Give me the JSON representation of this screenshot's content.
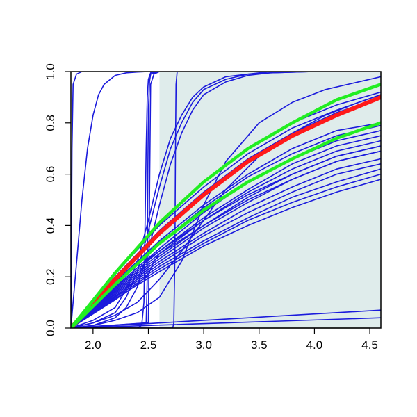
{
  "chart_data": {
    "type": "line",
    "title": "",
    "xlabel": "",
    "ylabel": "",
    "xlim": [
      1.8,
      4.6
    ],
    "ylim": [
      0.0,
      1.0
    ],
    "grid": false,
    "xticks": [
      2.0,
      2.5,
      3.0,
      3.5,
      4.0,
      4.5
    ],
    "xtick_labels": [
      "2.0",
      "2.5",
      "3.0",
      "3.5",
      "4.0",
      "4.5"
    ],
    "yticks": [
      0.0,
      0.2,
      0.4,
      0.6,
      0.8,
      1.0
    ],
    "ytick_labels": [
      "0.0",
      "0.2",
      "0.4",
      "0.6",
      "0.8",
      "1.0"
    ],
    "shaded_region": {
      "x": [
        2.6,
        4.6
      ],
      "color": "#dfeceb"
    },
    "colors": {
      "curves": "#1a1adc",
      "central": "#ff1a1a",
      "bounds": "#22ee22",
      "shade": "#dfeceb"
    },
    "series": [
      {
        "role": "curve",
        "x": [
          1.8,
          1.805,
          1.81,
          1.82,
          1.85,
          1.9,
          2.0,
          4.6
        ],
        "y": [
          0.0,
          0.3,
          0.7,
          0.95,
          0.99,
          1.0,
          1.0,
          1.0
        ]
      },
      {
        "role": "curve",
        "x": [
          1.8,
          1.83,
          1.86,
          1.9,
          1.95,
          2.0,
          2.05,
          2.1,
          2.2,
          2.3,
          2.4,
          2.5,
          2.6
        ],
        "y": [
          0.0,
          0.15,
          0.3,
          0.5,
          0.7,
          0.83,
          0.91,
          0.95,
          0.985,
          0.995,
          0.998,
          1.0,
          1.0
        ]
      },
      {
        "role": "curve",
        "x": [
          1.8,
          2.4,
          2.44,
          2.46,
          2.47,
          2.48,
          2.49,
          2.5,
          2.52,
          2.6
        ],
        "y": [
          0.0,
          0.0,
          0.01,
          0.1,
          0.4,
          0.7,
          0.9,
          0.97,
          0.995,
          1.0
        ]
      },
      {
        "role": "curve",
        "x": [
          1.8,
          2.48,
          2.49,
          2.495,
          2.5,
          2.51,
          2.52,
          2.6
        ],
        "y": [
          0.0,
          0.02,
          0.2,
          0.6,
          0.85,
          0.96,
          0.99,
          1.0
        ]
      },
      {
        "role": "curve",
        "x": [
          1.8,
          2.5,
          2.51,
          2.52,
          2.55,
          2.6
        ],
        "y": [
          0.0,
          0.02,
          0.5,
          0.95,
          0.99,
          1.0
        ]
      },
      {
        "role": "curve",
        "x": [
          1.8,
          2.72,
          2.73,
          2.74,
          2.745,
          2.75,
          2.76,
          4.6
        ],
        "y": [
          0.0,
          0.0,
          0.02,
          0.3,
          0.7,
          0.95,
          1.0,
          1.0
        ]
      },
      {
        "role": "curve",
        "x": [
          1.8,
          2.0,
          2.2,
          2.3,
          2.4,
          2.5,
          2.6,
          2.7,
          2.8,
          2.9,
          3.0,
          3.2,
          3.4,
          3.6,
          4.0,
          4.6
        ],
        "y": [
          0.0,
          0.02,
          0.06,
          0.12,
          0.22,
          0.38,
          0.55,
          0.7,
          0.8,
          0.88,
          0.93,
          0.97,
          0.99,
          0.995,
          1.0,
          1.0
        ]
      },
      {
        "role": "curve",
        "x": [
          1.8,
          2.0,
          2.2,
          2.3,
          2.4,
          2.5,
          2.6,
          2.7,
          2.8,
          2.9,
          3.0,
          3.2,
          3.4,
          3.6,
          4.0,
          4.6
        ],
        "y": [
          0.0,
          0.01,
          0.04,
          0.08,
          0.16,
          0.3,
          0.48,
          0.64,
          0.76,
          0.85,
          0.91,
          0.96,
          0.985,
          0.995,
          1.0,
          1.0
        ]
      },
      {
        "role": "curve",
        "x": [
          1.8,
          2.0,
          2.2,
          2.3,
          2.4,
          2.5,
          2.6,
          2.7,
          2.8,
          2.9,
          3.0,
          3.2,
          3.4,
          3.6,
          4.0,
          4.6
        ],
        "y": [
          0.0,
          0.03,
          0.08,
          0.15,
          0.26,
          0.42,
          0.6,
          0.74,
          0.83,
          0.9,
          0.94,
          0.98,
          0.99,
          1.0,
          1.0,
          1.0
        ]
      },
      {
        "role": "curve",
        "x": [
          1.8,
          2.0,
          2.2,
          2.4,
          2.6,
          2.8,
          3.0,
          3.2,
          3.5,
          3.8,
          4.1,
          4.4,
          4.6
        ],
        "y": [
          0.0,
          0.01,
          0.03,
          0.06,
          0.12,
          0.26,
          0.48,
          0.65,
          0.8,
          0.88,
          0.93,
          0.96,
          0.98
        ]
      },
      {
        "role": "curve",
        "x": [
          1.8,
          2.0,
          2.2,
          2.4,
          2.6,
          2.8,
          3.0,
          3.2,
          3.5,
          3.8,
          4.1,
          4.4,
          4.6
        ],
        "y": [
          0.0,
          0.02,
          0.05,
          0.1,
          0.19,
          0.3,
          0.42,
          0.54,
          0.67,
          0.76,
          0.83,
          0.88,
          0.91
        ]
      },
      {
        "role": "curve",
        "x": [
          1.8,
          4.6
        ],
        "y": [
          0.0,
          0.07
        ]
      },
      {
        "role": "curve",
        "x": [
          1.8,
          4.6
        ],
        "y": [
          0.0,
          0.04
        ]
      },
      {
        "role": "curve",
        "x": [
          1.8,
          2.2,
          2.6,
          3.0,
          3.4,
          3.8,
          4.2,
          4.6
        ],
        "y": [
          0.0,
          0.21,
          0.4,
          0.55,
          0.68,
          0.78,
          0.85,
          0.91
        ]
      },
      {
        "role": "curve",
        "x": [
          1.8,
          2.2,
          2.6,
          3.0,
          3.4,
          3.8,
          4.2,
          4.6
        ],
        "y": [
          0.0,
          0.22,
          0.41,
          0.57,
          0.7,
          0.8,
          0.87,
          0.92
        ]
      },
      {
        "role": "curve",
        "x": [
          1.8,
          2.2,
          2.6,
          3.0,
          3.4,
          3.8,
          4.2,
          4.6
        ],
        "y": [
          0.0,
          0.2,
          0.38,
          0.53,
          0.66,
          0.76,
          0.84,
          0.9
        ]
      },
      {
        "role": "curve",
        "x": [
          1.8,
          2.2,
          2.6,
          3.0,
          3.4,
          3.8,
          4.2,
          4.6
        ],
        "y": [
          0.0,
          0.18,
          0.34,
          0.48,
          0.6,
          0.7,
          0.77,
          0.8
        ]
      },
      {
        "role": "curve",
        "x": [
          1.8,
          2.2,
          2.6,
          3.0,
          3.4,
          3.8,
          4.2,
          4.6
        ],
        "y": [
          0.0,
          0.17,
          0.33,
          0.47,
          0.59,
          0.68,
          0.75,
          0.79
        ]
      },
      {
        "role": "curve",
        "x": [
          1.8,
          2.2,
          2.6,
          3.0,
          3.4,
          3.8,
          4.2,
          4.6
        ],
        "y": [
          0.0,
          0.16,
          0.31,
          0.45,
          0.57,
          0.66,
          0.73,
          0.77
        ]
      },
      {
        "role": "curve",
        "x": [
          1.8,
          2.2,
          2.6,
          3.0,
          3.4,
          3.8,
          4.2,
          4.6
        ],
        "y": [
          0.0,
          0.155,
          0.3,
          0.43,
          0.54,
          0.64,
          0.71,
          0.75
        ]
      },
      {
        "role": "curve",
        "x": [
          1.8,
          2.2,
          2.6,
          3.0,
          3.4,
          3.8,
          4.2,
          4.6
        ],
        "y": [
          0.0,
          0.15,
          0.29,
          0.42,
          0.53,
          0.62,
          0.69,
          0.73
        ]
      },
      {
        "role": "curve",
        "x": [
          1.8,
          2.2,
          2.6,
          3.0,
          3.4,
          3.8,
          4.2,
          4.6
        ],
        "y": [
          0.0,
          0.145,
          0.28,
          0.4,
          0.51,
          0.6,
          0.67,
          0.71
        ]
      },
      {
        "role": "curve",
        "x": [
          1.8,
          2.2,
          2.6,
          3.0,
          3.4,
          3.8,
          4.2,
          4.6
        ],
        "y": [
          0.0,
          0.14,
          0.27,
          0.39,
          0.49,
          0.58,
          0.65,
          0.69
        ]
      },
      {
        "role": "curve",
        "x": [
          1.8,
          2.2,
          2.6,
          3.0,
          3.4,
          3.8,
          4.2,
          4.6
        ],
        "y": [
          0.0,
          0.135,
          0.26,
          0.37,
          0.47,
          0.55,
          0.62,
          0.66
        ]
      },
      {
        "role": "curve",
        "x": [
          1.8,
          2.2,
          2.6,
          3.0,
          3.4,
          3.8,
          4.2,
          4.6
        ],
        "y": [
          0.0,
          0.13,
          0.25,
          0.36,
          0.45,
          0.53,
          0.6,
          0.64
        ]
      },
      {
        "role": "curve",
        "x": [
          1.8,
          2.2,
          2.6,
          3.0,
          3.4,
          3.8,
          4.2,
          4.6
        ],
        "y": [
          0.0,
          0.125,
          0.24,
          0.34,
          0.43,
          0.51,
          0.57,
          0.62
        ]
      },
      {
        "role": "curve",
        "x": [
          1.8,
          2.2,
          2.6,
          3.0,
          3.4,
          3.8,
          4.2,
          4.6
        ],
        "y": [
          0.0,
          0.12,
          0.23,
          0.33,
          0.42,
          0.49,
          0.55,
          0.6
        ]
      },
      {
        "role": "curve",
        "x": [
          1.8,
          2.2,
          2.6,
          3.0,
          3.4,
          3.8,
          4.2,
          4.6
        ],
        "y": [
          0.0,
          0.115,
          0.22,
          0.32,
          0.4,
          0.47,
          0.53,
          0.58
        ]
      },
      {
        "role": "curve",
        "x": [
          1.8,
          2.2,
          2.4,
          2.45,
          2.5,
          2.6,
          3.0,
          3.4,
          3.8,
          4.2,
          4.6
        ],
        "y": [
          0.0,
          0.12,
          0.19,
          0.24,
          0.27,
          0.3,
          0.42,
          0.52,
          0.6,
          0.67,
          0.71
        ]
      },
      {
        "role": "curve",
        "x": [
          1.8,
          2.2,
          2.4,
          2.5,
          2.55,
          2.6,
          3.0,
          3.4,
          3.8,
          4.2,
          4.6
        ],
        "y": [
          0.0,
          0.11,
          0.17,
          0.21,
          0.26,
          0.29,
          0.4,
          0.5,
          0.58,
          0.65,
          0.69
        ]
      },
      {
        "role": "central",
        "x": [
          1.8,
          2.2,
          2.6,
          3.0,
          3.4,
          3.8,
          4.2,
          4.6
        ],
        "y": [
          0.0,
          0.19,
          0.37,
          0.52,
          0.65,
          0.75,
          0.83,
          0.9
        ]
      },
      {
        "role": "bound",
        "x": [
          1.8,
          2.2,
          2.6,
          3.0,
          3.4,
          3.8,
          4.2,
          4.6
        ],
        "y": [
          0.0,
          0.215,
          0.41,
          0.57,
          0.7,
          0.8,
          0.89,
          0.95
        ]
      },
      {
        "role": "bound",
        "x": [
          1.8,
          2.2,
          2.6,
          3.0,
          3.4,
          3.8,
          4.2,
          4.6
        ],
        "y": [
          0.0,
          0.17,
          0.33,
          0.46,
          0.57,
          0.66,
          0.74,
          0.8
        ]
      }
    ]
  }
}
